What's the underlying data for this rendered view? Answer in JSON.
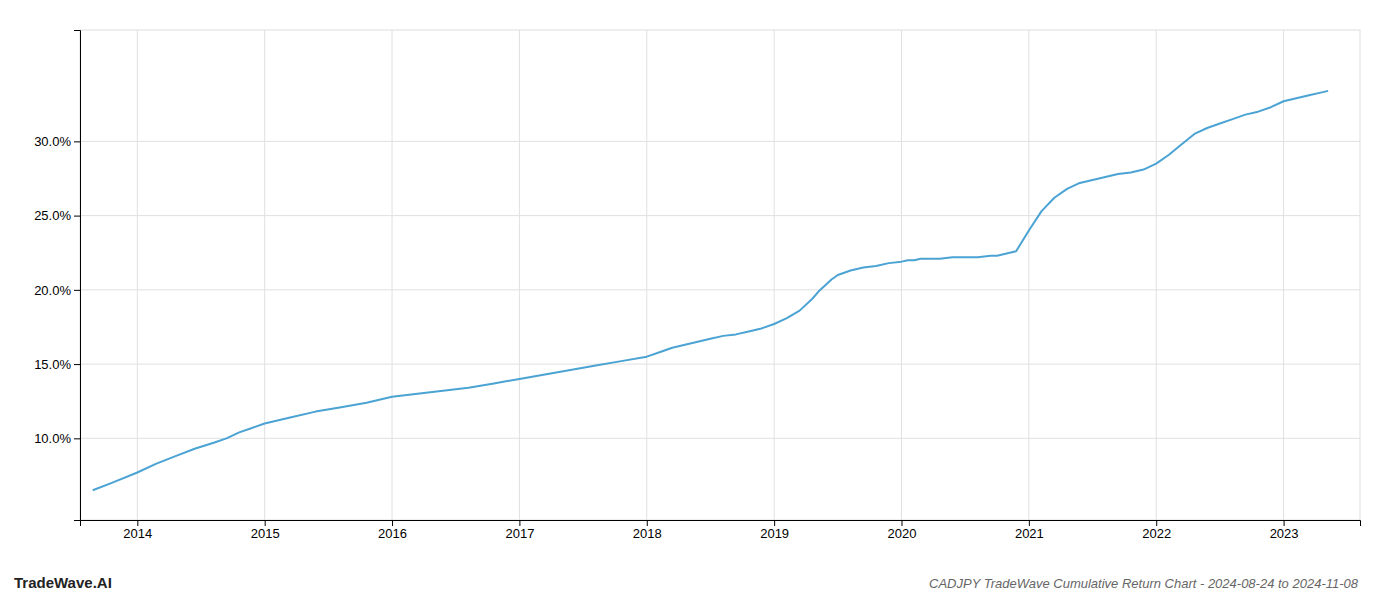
{
  "chart_data": {
    "type": "line",
    "title": "CADJPY TradeWave Cumulative Return Chart - 2024-08-24 to 2024-11-08",
    "annotations": [
      "TradeWave.AI"
    ],
    "color": "#4ba3d3",
    "grid": true,
    "xlim": [
      2013.55,
      2023.6
    ],
    "ylim": [
      0.045,
      0.375
    ],
    "xticks": [
      2014,
      2015,
      2016,
      2017,
      2018,
      2019,
      2020,
      2021,
      2022,
      2023
    ],
    "yticks": [
      {
        "value": 0.1,
        "label": "10.0%"
      },
      {
        "value": 0.15,
        "label": "15.0%"
      },
      {
        "value": 0.2,
        "label": "20.0%"
      },
      {
        "value": 0.25,
        "label": "25.0%"
      },
      {
        "value": 0.3,
        "label": "30.0%"
      }
    ],
    "x": [
      2013.65,
      2013.8,
      2014.0,
      2014.15,
      2014.3,
      2014.45,
      2014.6,
      2014.7,
      2014.8,
      2014.9,
      2015.0,
      2015.05,
      2015.1,
      2015.2,
      2015.4,
      2015.6,
      2015.8,
      2016.0,
      2016.2,
      2016.4,
      2016.6,
      2016.8,
      2017.0,
      2017.2,
      2017.4,
      2017.6,
      2017.8,
      2018.0,
      2018.1,
      2018.2,
      2018.3,
      2018.4,
      2018.5,
      2018.6,
      2018.7,
      2018.8,
      2018.9,
      2019.0,
      2019.1,
      2019.2,
      2019.3,
      2019.35,
      2019.4,
      2019.45,
      2019.5,
      2019.6,
      2019.7,
      2019.8,
      2019.9,
      2020.0,
      2020.05,
      2020.1,
      2020.15,
      2020.2,
      2020.3,
      2020.4,
      2020.5,
      2020.6,
      2020.7,
      2020.75,
      2020.8,
      2020.85,
      2020.9,
      2021.0,
      2021.1,
      2021.2,
      2021.3,
      2021.4,
      2021.5,
      2021.6,
      2021.7,
      2021.8,
      2021.9,
      2022.0,
      2022.1,
      2022.2,
      2022.3,
      2022.4,
      2022.5,
      2022.6,
      2022.7,
      2022.8,
      2022.9,
      2023.0,
      2023.1,
      2023.2,
      2023.3,
      2023.35
    ],
    "values": [
      0.065,
      0.07,
      0.077,
      0.083,
      0.088,
      0.093,
      0.097,
      0.1,
      0.104,
      0.107,
      0.11,
      0.111,
      0.112,
      0.114,
      0.118,
      0.121,
      0.124,
      0.128,
      0.13,
      0.132,
      0.134,
      0.137,
      0.14,
      0.143,
      0.146,
      0.149,
      0.152,
      0.155,
      0.158,
      0.161,
      0.163,
      0.165,
      0.167,
      0.169,
      0.17,
      0.172,
      0.174,
      0.177,
      0.181,
      0.186,
      0.194,
      0.199,
      0.203,
      0.207,
      0.21,
      0.213,
      0.215,
      0.216,
      0.218,
      0.219,
      0.22,
      0.22,
      0.221,
      0.221,
      0.221,
      0.222,
      0.222,
      0.222,
      0.223,
      0.223,
      0.224,
      0.225,
      0.226,
      0.24,
      0.253,
      0.262,
      0.268,
      0.272,
      0.274,
      0.276,
      0.278,
      0.279,
      0.281,
      0.285,
      0.291,
      0.298,
      0.305,
      0.309,
      0.312,
      0.315,
      0.318,
      0.32,
      0.323,
      0.327,
      0.329,
      0.331,
      0.333,
      0.334
    ]
  }
}
